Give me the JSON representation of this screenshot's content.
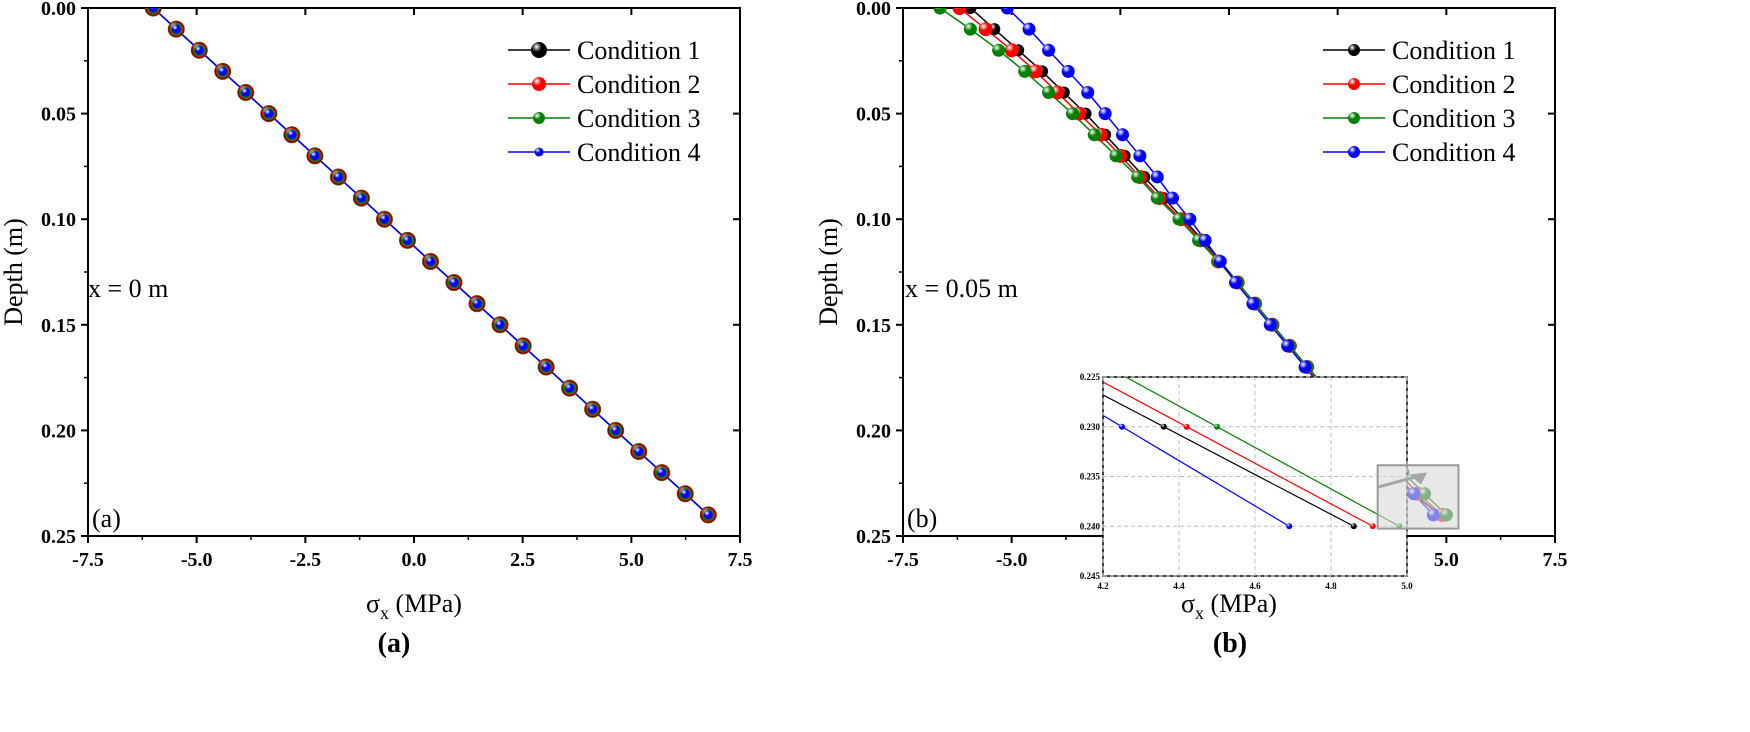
{
  "colors": {
    "c1": "#000000",
    "c2": "#ff0000",
    "c3": "#008000",
    "c4": "#0000ff"
  },
  "chart_data": [
    {
      "type": "line",
      "panel_tag": "(a)",
      "caption": "(a)",
      "annotation": "x = 0 m",
      "xlabel": "σx (MPa)",
      "xlabel_main": "σ",
      "xlabel_sub": "x",
      "xlabel_unit": " (MPa)",
      "ylabel": "Depth (m)",
      "xlim": [
        -7.5,
        7.5
      ],
      "ylim": [
        0.25,
        0.0
      ],
      "xticks": [
        "-7.5",
        "-5.0",
        "-2.5",
        "0.0",
        "2.5",
        "5.0",
        "7.5"
      ],
      "yticks": [
        "0.00",
        "0.05",
        "0.10",
        "0.15",
        "0.20",
        "0.25"
      ],
      "series": [
        {
          "name": "Condition 1",
          "x": [
            -6.0,
            -5.47,
            -4.94,
            -4.4,
            -3.87,
            -3.34,
            -2.81,
            -2.28,
            -1.74,
            -1.21,
            -0.68,
            -0.15,
            0.38,
            0.92,
            1.45,
            1.98,
            2.51,
            3.04,
            3.58,
            4.11,
            4.64,
            5.17,
            5.7,
            6.24,
            6.77
          ],
          "y": [
            0.0,
            0.01,
            0.02,
            0.03,
            0.04,
            0.05,
            0.06,
            0.07,
            0.08,
            0.09,
            0.1,
            0.11,
            0.12,
            0.13,
            0.14,
            0.15,
            0.16,
            0.17,
            0.18,
            0.19,
            0.2,
            0.21,
            0.22,
            0.23,
            0.24
          ]
        },
        {
          "name": "Condition 2",
          "x": [
            -6.0,
            -5.47,
            -4.94,
            -4.4,
            -3.87,
            -3.34,
            -2.81,
            -2.28,
            -1.74,
            -1.21,
            -0.68,
            -0.15,
            0.38,
            0.92,
            1.45,
            1.98,
            2.51,
            3.04,
            3.58,
            4.11,
            4.64,
            5.17,
            5.7,
            6.24,
            6.77
          ],
          "y": [
            0.0,
            0.01,
            0.02,
            0.03,
            0.04,
            0.05,
            0.06,
            0.07,
            0.08,
            0.09,
            0.1,
            0.11,
            0.12,
            0.13,
            0.14,
            0.15,
            0.16,
            0.17,
            0.18,
            0.19,
            0.2,
            0.21,
            0.22,
            0.23,
            0.24
          ]
        },
        {
          "name": "Condition 3",
          "x": [
            -6.0,
            -5.47,
            -4.94,
            -4.4,
            -3.87,
            -3.34,
            -2.81,
            -2.28,
            -1.74,
            -1.21,
            -0.68,
            -0.15,
            0.38,
            0.92,
            1.45,
            1.98,
            2.51,
            3.04,
            3.58,
            4.11,
            4.64,
            5.17,
            5.7,
            6.24,
            6.77
          ],
          "y": [
            0.0,
            0.01,
            0.02,
            0.03,
            0.04,
            0.05,
            0.06,
            0.07,
            0.08,
            0.09,
            0.1,
            0.11,
            0.12,
            0.13,
            0.14,
            0.15,
            0.16,
            0.17,
            0.18,
            0.19,
            0.2,
            0.21,
            0.22,
            0.23,
            0.24
          ]
        },
        {
          "name": "Condition 4",
          "x": [
            -6.0,
            -5.47,
            -4.94,
            -4.4,
            -3.87,
            -3.34,
            -2.81,
            -2.28,
            -1.74,
            -1.21,
            -0.68,
            -0.15,
            0.38,
            0.92,
            1.45,
            1.98,
            2.51,
            3.04,
            3.58,
            4.11,
            4.64,
            5.17,
            5.7,
            6.24,
            6.77
          ],
          "y": [
            0.0,
            0.01,
            0.02,
            0.03,
            0.04,
            0.05,
            0.06,
            0.07,
            0.08,
            0.09,
            0.1,
            0.11,
            0.12,
            0.13,
            0.14,
            0.15,
            0.16,
            0.17,
            0.18,
            0.19,
            0.2,
            0.21,
            0.22,
            0.23,
            0.24
          ]
        }
      ],
      "legend": "top-right",
      "grid": false
    },
    {
      "type": "line",
      "panel_tag": "(b)",
      "caption": "(b)",
      "annotation": "x = 0.05 m",
      "xlabel": "σx (MPa)",
      "xlabel_main": "σ",
      "xlabel_sub": "x",
      "xlabel_unit": " (MPa)",
      "ylabel": "Depth (m)",
      "xlim": [
        -7.5,
        7.5
      ],
      "ylim": [
        0.25,
        0.0
      ],
      "xticks": [
        "-7.5",
        "-5.0",
        "-2.5",
        "0.0",
        "2.5",
        "5.0",
        "7.5"
      ],
      "yticks": [
        "0.00",
        "0.05",
        "0.10",
        "0.15",
        "0.20",
        "0.25"
      ],
      "series": [
        {
          "name": "Condition 1",
          "x": [
            -5.95,
            -5.4,
            -4.85,
            -4.3,
            -3.8,
            -3.3,
            -2.85,
            -2.4,
            -1.95,
            -1.5,
            -1.05,
            -0.6,
            -0.2,
            0.2,
            0.6,
            1.0,
            1.4,
            1.8,
            2.2,
            2.6,
            3.0,
            3.4,
            3.8,
            4.25,
            4.85
          ],
          "y": [
            0.0,
            0.01,
            0.02,
            0.03,
            0.04,
            0.05,
            0.06,
            0.07,
            0.08,
            0.09,
            0.1,
            0.11,
            0.12,
            0.13,
            0.14,
            0.15,
            0.16,
            0.17,
            0.18,
            0.19,
            0.2,
            0.21,
            0.22,
            0.23,
            0.24
          ]
        },
        {
          "name": "Condition 2",
          "x": [
            -6.2,
            -5.6,
            -5.0,
            -4.45,
            -3.95,
            -3.45,
            -2.95,
            -2.5,
            -2.05,
            -1.6,
            -1.1,
            -0.65,
            -0.25,
            0.2,
            0.6,
            1.0,
            1.4,
            1.8,
            2.2,
            2.65,
            3.05,
            3.45,
            3.9,
            4.35,
            4.9
          ],
          "y": [
            0.0,
            0.01,
            0.02,
            0.03,
            0.04,
            0.05,
            0.06,
            0.07,
            0.08,
            0.09,
            0.1,
            0.11,
            0.12,
            0.13,
            0.14,
            0.15,
            0.16,
            0.17,
            0.18,
            0.19,
            0.2,
            0.21,
            0.22,
            0.23,
            0.24
          ]
        },
        {
          "name": "Condition 3",
          "x": [
            -6.65,
            -5.95,
            -5.3,
            -4.7,
            -4.15,
            -3.6,
            -3.1,
            -2.6,
            -2.1,
            -1.65,
            -1.15,
            -0.7,
            -0.25,
            0.2,
            0.6,
            1.0,
            1.4,
            1.8,
            2.25,
            2.7,
            3.15,
            3.6,
            4.0,
            4.5,
            5.0
          ],
          "y": [
            0.0,
            0.01,
            0.02,
            0.03,
            0.04,
            0.05,
            0.06,
            0.07,
            0.08,
            0.09,
            0.1,
            0.11,
            0.12,
            0.13,
            0.14,
            0.15,
            0.16,
            0.17,
            0.18,
            0.19,
            0.2,
            0.21,
            0.22,
            0.23,
            0.24
          ]
        },
        {
          "name": "Condition 4",
          "x": [
            -5.1,
            -4.6,
            -4.15,
            -3.7,
            -3.25,
            -2.85,
            -2.45,
            -2.05,
            -1.65,
            -1.3,
            -0.9,
            -0.55,
            -0.2,
            0.15,
            0.55,
            0.95,
            1.35,
            1.75,
            2.15,
            2.55,
            2.95,
            3.35,
            3.75,
            4.25,
            4.7
          ],
          "y": [
            0.0,
            0.01,
            0.02,
            0.03,
            0.04,
            0.05,
            0.06,
            0.07,
            0.08,
            0.09,
            0.1,
            0.11,
            0.12,
            0.13,
            0.14,
            0.15,
            0.16,
            0.17,
            0.18,
            0.19,
            0.2,
            0.21,
            0.22,
            0.23,
            0.24
          ]
        }
      ],
      "legend": "top-right",
      "grid": false,
      "inset": {
        "xlim": [
          4.2,
          5.0
        ],
        "ylim": [
          0.245,
          0.225
        ],
        "xticks": [
          "4.2",
          "4.4",
          "4.6",
          "4.8",
          "5.0"
        ],
        "yticks": [
          "0.225",
          "0.230",
          "0.235",
          "0.240",
          "0.245"
        ],
        "grid": true,
        "series": [
          {
            "name": "Condition 1",
            "x": [
              4.36,
              4.86
            ],
            "y": [
              0.23,
              0.24
            ]
          },
          {
            "name": "Condition 2",
            "x": [
              4.42,
              4.91
            ],
            "y": [
              0.23,
              0.24
            ]
          },
          {
            "name": "Condition 3",
            "x": [
              4.5,
              4.98
            ],
            "y": [
              0.23,
              0.24
            ]
          },
          {
            "name": "Condition 4",
            "x": [
              4.25,
              4.69
            ],
            "y": [
              0.23,
              0.24
            ]
          }
        ]
      }
    }
  ]
}
